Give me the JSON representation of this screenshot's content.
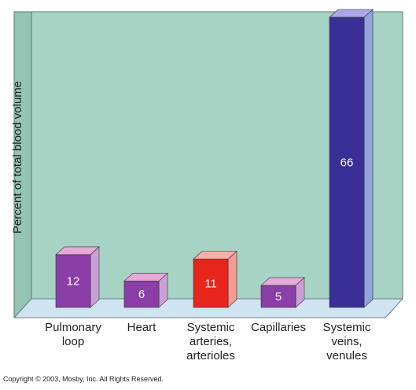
{
  "chart_data": {
    "type": "bar",
    "ylabel": "Percent of total blood volume",
    "ylim": [
      0,
      70
    ],
    "grid": false,
    "bars": [
      {
        "label_lines": [
          "Pulmonary",
          "loop"
        ],
        "value": 12,
        "value_label": "12",
        "color": "#8B3DA8"
      },
      {
        "label_lines": [
          "Heart"
        ],
        "value": 6,
        "value_label": "6",
        "color": "#8B3DA8"
      },
      {
        "label_lines": [
          "Systemic",
          "arteries,",
          "arterioles"
        ],
        "value": 11,
        "value_label": "11",
        "color": "#E8251C"
      },
      {
        "label_lines": [
          "Capillaries"
        ],
        "value": 5,
        "value_label": "5",
        "color": "#8B3DA8"
      },
      {
        "label_lines": [
          "Systemic",
          "veins,",
          "venules"
        ],
        "value": 66,
        "value_label": "66",
        "color": "#3A2F96"
      }
    ]
  },
  "colors": {
    "back_wall": "#A6D3C3",
    "floor": "#CFE3F1",
    "bar_top_purple": "#E7A9D8",
    "bar_side_purple": "#C9A0D6",
    "bar_top_red": "#F4AFA8",
    "bar_side_red": "#F39A95",
    "bar_top_blue": "#A9A9E8",
    "bar_side_blue": "#8FA4DA"
  },
  "copyright": "Copyright © 2003, Mosby, Inc. All Rights Reserved."
}
